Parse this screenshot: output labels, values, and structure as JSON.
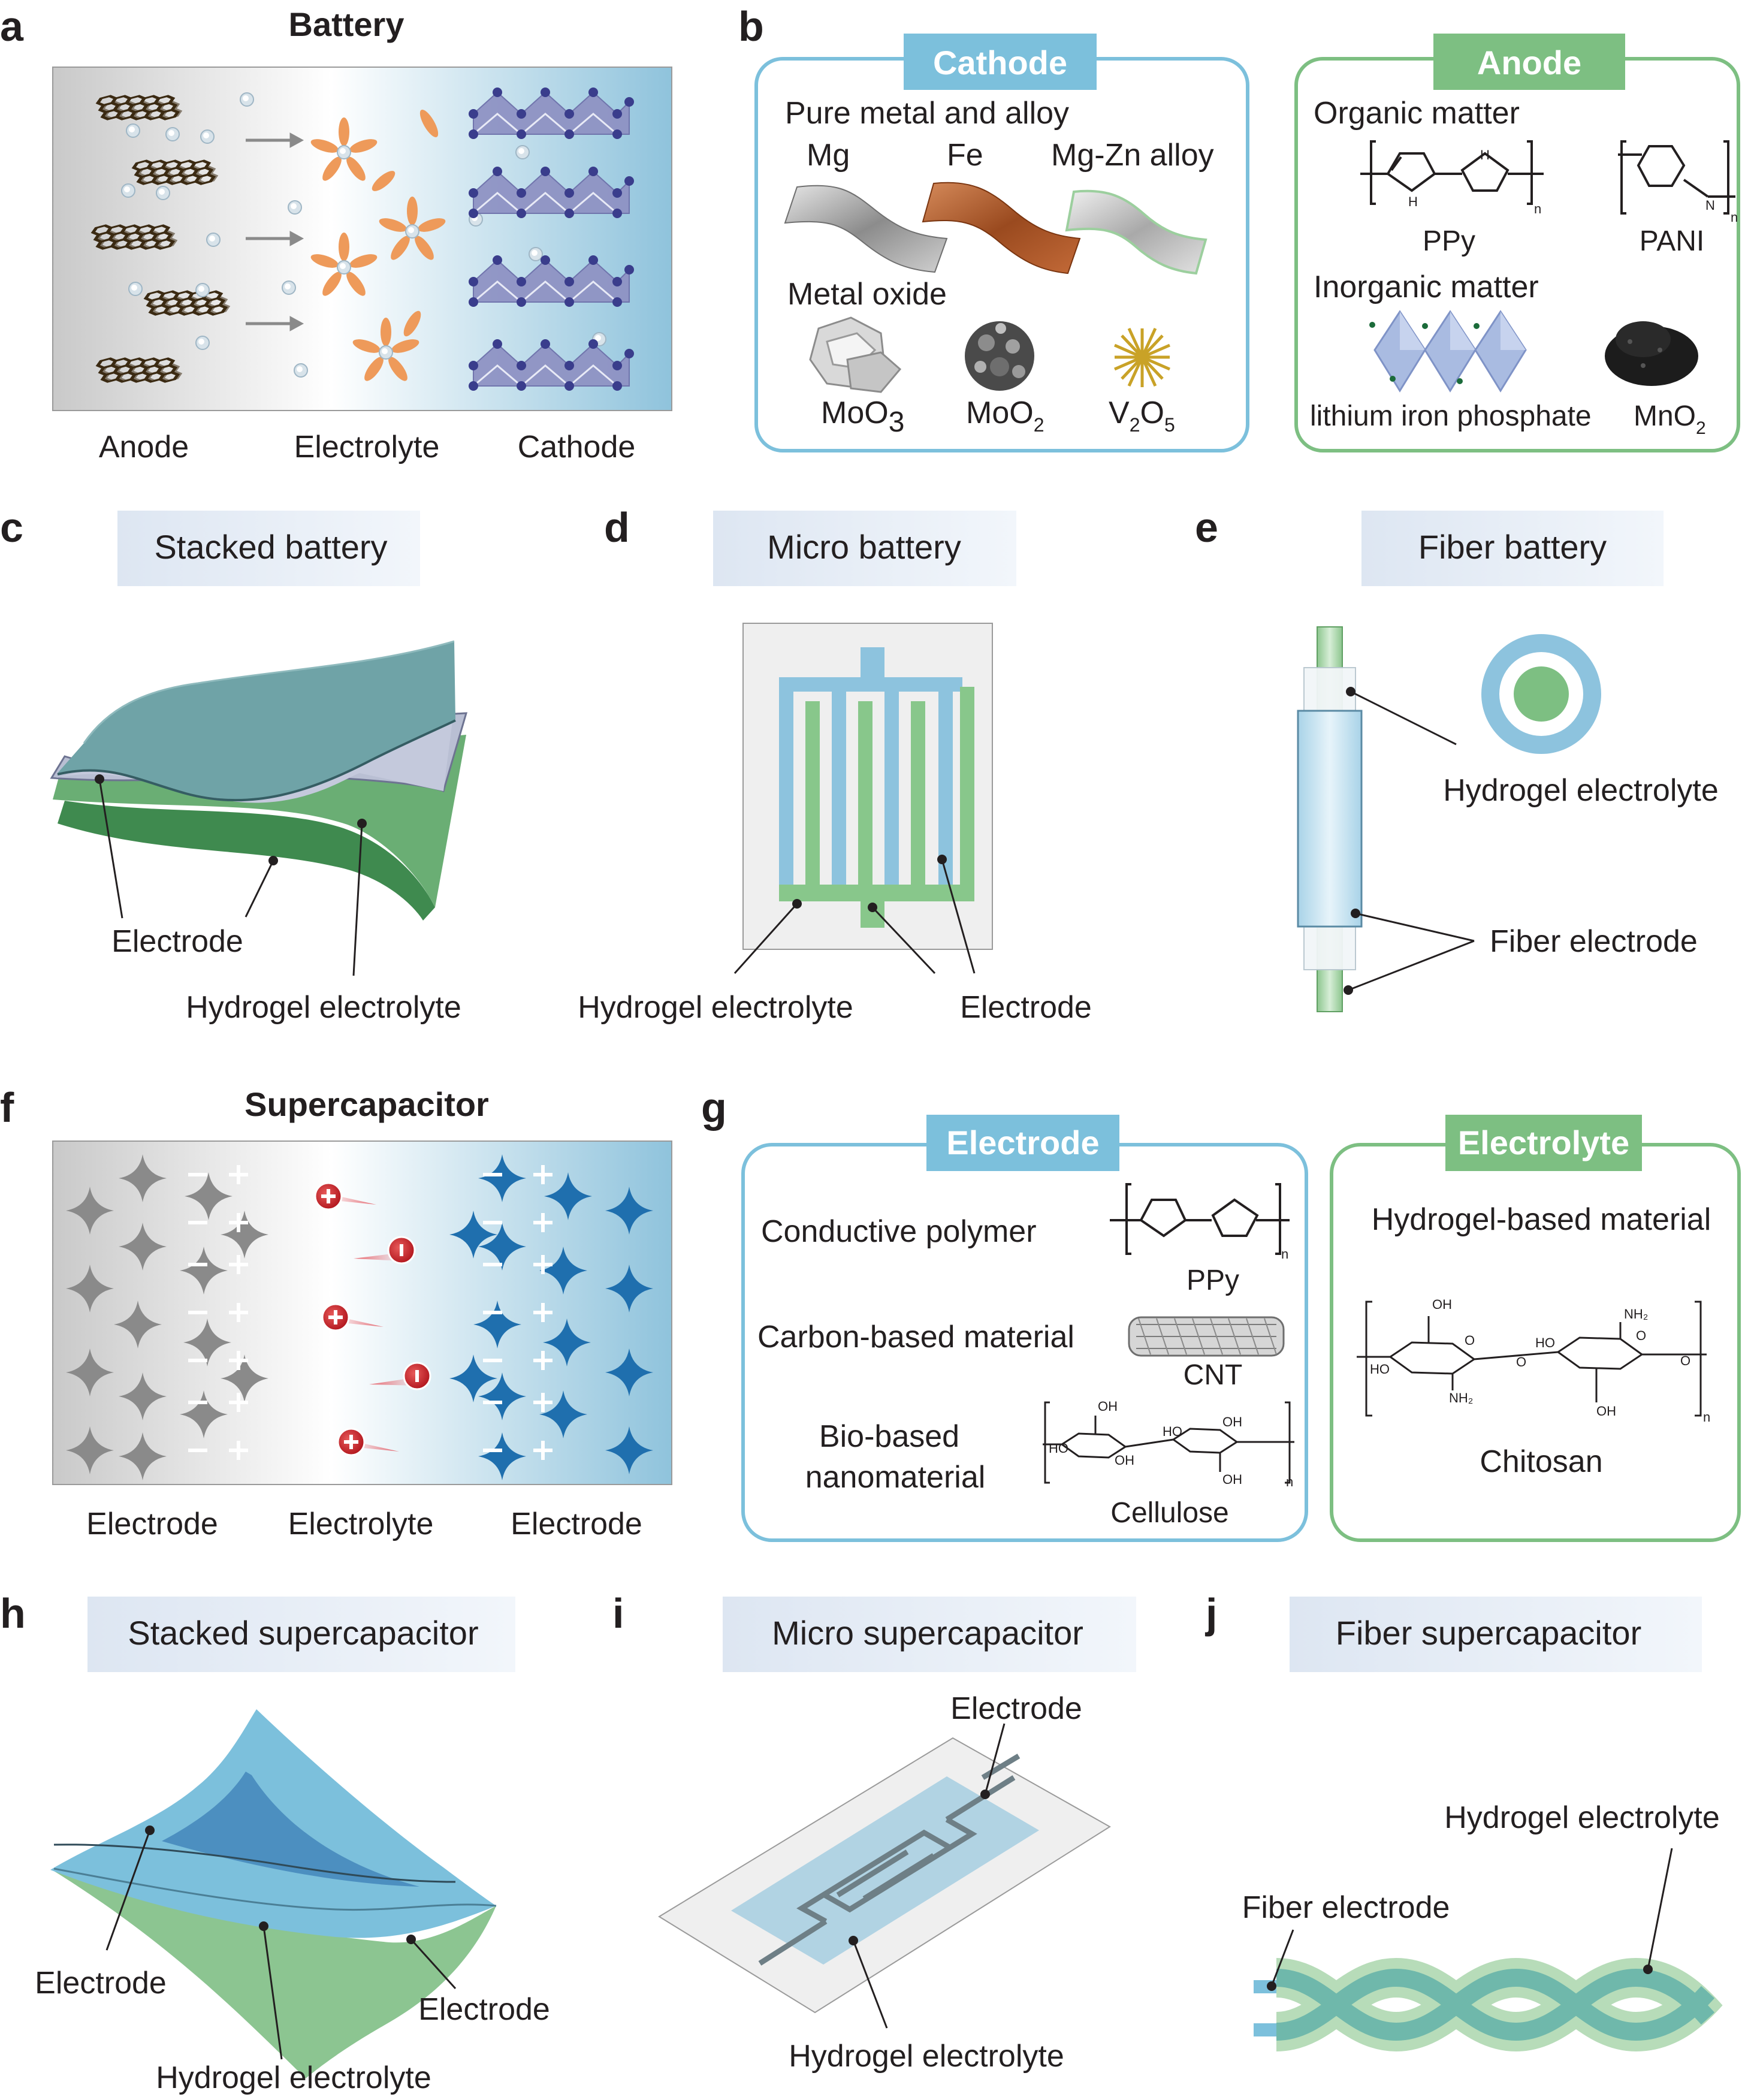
{
  "panels": {
    "a": {
      "letter": "a",
      "title": "Battery",
      "labels": [
        "Anode",
        "Electrolyte",
        "Cathode"
      ]
    },
    "b": {
      "letter": "b",
      "cathode": {
        "header": "Cathode",
        "metal_heading": "Pure metal and alloy",
        "metals": [
          "Mg",
          "Fe",
          "Mg-Zn alloy"
        ],
        "oxide_heading": "Metal oxide",
        "oxides": [
          {
            "base": "MoO",
            "sub": "3"
          },
          {
            "base": "MoO",
            "sub": "2"
          },
          {
            "base": "V",
            "sub": "2",
            "base2": "O",
            "sub2": "5"
          }
        ]
      },
      "anode": {
        "header": "Anode",
        "organic_heading": "Organic matter",
        "organics": [
          "PPy",
          "PANI"
        ],
        "inorganic_heading": "Inorganic matter",
        "inorganic_items": [
          "lithium iron phosphate"
        ],
        "mno2": {
          "base": "MnO",
          "sub": "2"
        }
      },
      "chem_marks": {
        "n": "n",
        "h": "H",
        "nitrogen": "N"
      }
    },
    "c": {
      "letter": "c",
      "header": "Stacked battery",
      "labels": [
        "Electrode",
        "Hydrogel electrolyte"
      ]
    },
    "d": {
      "letter": "d",
      "header": "Micro battery",
      "labels": [
        "Hydrogel electrolyte",
        "Electrode"
      ]
    },
    "e": {
      "letter": "e",
      "header": "Fiber battery",
      "labels": [
        "Hydrogel electrolyte",
        "Fiber electrode"
      ]
    },
    "f": {
      "letter": "f",
      "title": "Supercapacitor",
      "labels": [
        "Electrode",
        "Electrolyte",
        "Electrode"
      ]
    },
    "g": {
      "letter": "g",
      "electrode": {
        "header": "Electrode",
        "items": [
          "Conductive polymer",
          "Carbon-based material",
          "Bio-based",
          "nanomaterial"
        ],
        "names": [
          "PPy",
          "CNT",
          "Cellulose"
        ]
      },
      "electrolyte": {
        "header": "Electrolyte",
        "heading": "Hydrogel-based material",
        "name": "Chitosan"
      },
      "chem_marks": {
        "oh": "OH",
        "ho": "HO",
        "nh2": "NH₂",
        "o": "O"
      }
    },
    "h": {
      "letter": "h",
      "header": "Stacked supercapacitor",
      "labels": [
        "Electrode",
        "Electrode",
        "Hydrogel electrolyte"
      ]
    },
    "i": {
      "letter": "i",
      "header": "Micro supercapacitor",
      "labels": [
        "Electrode",
        "Hydrogel electrolyte"
      ]
    },
    "j": {
      "letter": "j",
      "header": "Fiber supercapacitor",
      "labels": [
        "Hydrogel electrolyte",
        "Fiber electrode"
      ]
    }
  },
  "colors": {
    "blue_accent": "#7cc0dc",
    "green_accent": "#7dbf82",
    "cathode_blue": "#8fc3dc",
    "electrode_dark_blue": "#1f6fae",
    "micro_blue": "#8dc3de",
    "micro_green": "#88c78b",
    "label_bg": "#e6edf6"
  }
}
